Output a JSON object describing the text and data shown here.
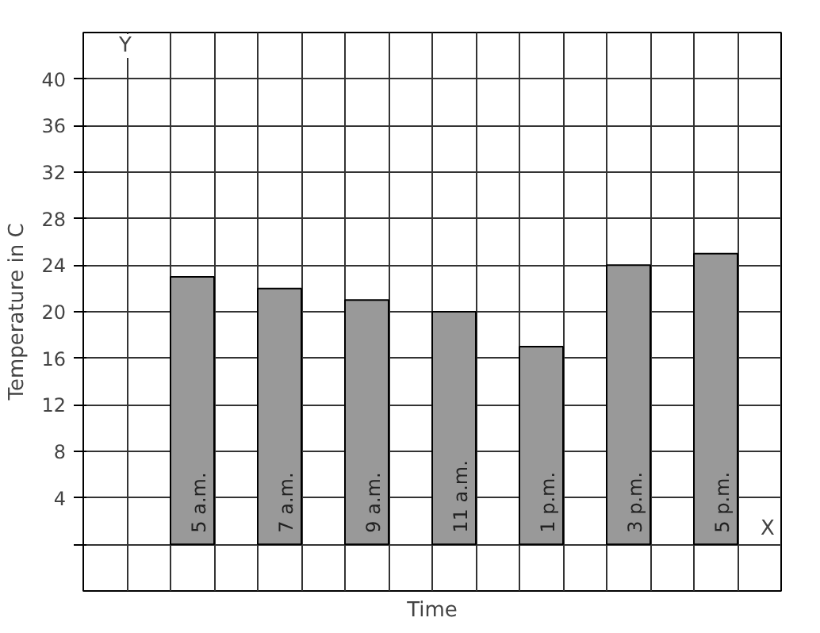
{
  "chart_data": {
    "type": "bar",
    "xlabel": "Time",
    "ylabel": "Temperature in C",
    "categories": [
      "5 a.m.",
      "7 a.m.",
      "9 a.m.",
      "11 a.m.",
      "1 p.m.",
      "3 p.m.",
      "5 p.m."
    ],
    "values": [
      23,
      22,
      21,
      20,
      17,
      24,
      25
    ],
    "color": "#999999",
    "ylim": [
      -4,
      44
    ],
    "yticks": [
      {
        "value": 0,
        "label": null
      },
      4,
      8,
      12,
      16,
      20,
      24,
      28,
      32,
      36,
      40
    ],
    "grid": true,
    "tick_labels": "y",
    "annotations": [
      "X",
      "Y"
    ]
  }
}
